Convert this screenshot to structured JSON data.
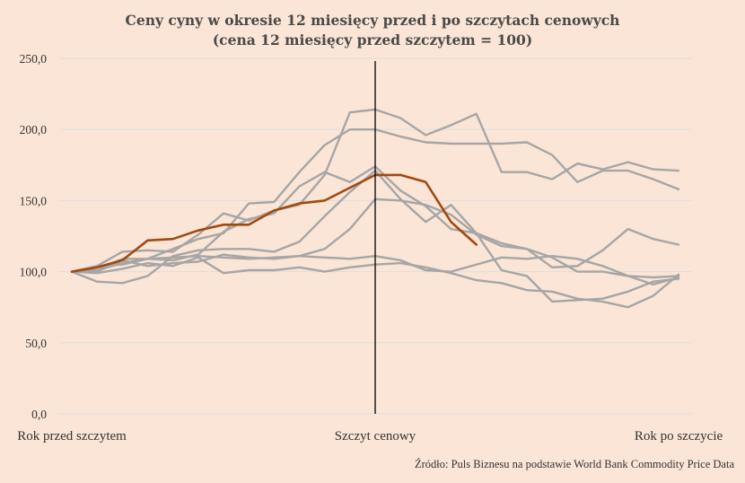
{
  "chart_data": {
    "type": "line",
    "title": "Ceny cyny w okresie 12 miesięcy przed i po szczytach cenowych",
    "subtitle": "(cena 12 miesięcy przed szczytem = 100)",
    "x_labels": [
      "Rok przed szczytem",
      "Szczyt cenowy",
      "Rok po szczycie"
    ],
    "x_range": [
      -12,
      12
    ],
    "peak_x": 0,
    "ylim": [
      0,
      250
    ],
    "y_ticks": [
      "0,0",
      "50,0",
      "100,0",
      "150,0",
      "200,0",
      "250,0"
    ],
    "grid": true,
    "source": "Źródło: Puls Biznesu na podstawie World Bank Commodity Price Data",
    "colors": {
      "history": "#a6a6a6",
      "current": "#a04a12",
      "background": "#fbe5d6",
      "grid": "#dedede",
      "peak_line": "#000000"
    },
    "series": [
      {
        "role": "history",
        "x": [
          -12,
          -11,
          -10,
          -9,
          -8,
          -7,
          -6,
          -5,
          -4,
          -3,
          -2,
          -1,
          0,
          1,
          2,
          3,
          4,
          5,
          6,
          7,
          8,
          9,
          10,
          11,
          12
        ],
        "values": [
          100,
          104,
          114,
          115,
          114,
          126,
          141,
          136,
          143,
          147,
          168,
          212,
          214,
          208,
          196,
          203,
          211,
          170,
          170,
          165,
          176,
          172,
          177,
          172,
          171
        ]
      },
      {
        "role": "history",
        "x": [
          -12,
          -11,
          -10,
          -9,
          -8,
          -7,
          -6,
          -5,
          -4,
          -3,
          -2,
          -1,
          0,
          1,
          2,
          3,
          4,
          5,
          6,
          7,
          8,
          9,
          10,
          11,
          12
        ],
        "values": [
          100,
          104,
          105,
          109,
          116,
          123,
          127,
          148,
          149,
          170,
          189,
          200,
          200,
          195,
          191,
          190,
          190,
          190,
          191,
          182,
          163,
          171,
          171,
          165,
          158
        ]
      },
      {
        "role": "history",
        "x": [
          -12,
          -11,
          -10,
          -9,
          -8,
          -7,
          -6,
          -5,
          -4,
          -3,
          -2,
          -1,
          0,
          1,
          2,
          3,
          4,
          5,
          6,
          7,
          8,
          9,
          10,
          11,
          12
        ],
        "values": [
          100,
          101,
          109,
          109,
          108,
          112,
          128,
          137,
          141,
          160,
          170,
          163,
          174,
          157,
          146,
          130,
          127,
          120,
          116,
          103,
          104,
          115,
          130,
          123,
          119
        ]
      },
      {
        "role": "history",
        "x": [
          -12,
          -11,
          -10,
          -9,
          -8,
          -7,
          -6,
          -5,
          -4,
          -3,
          -2,
          -1,
          0,
          1,
          2,
          3,
          4,
          5,
          6,
          7,
          8,
          9,
          10,
          11,
          12
        ],
        "values": [
          100,
          93,
          92,
          97,
          111,
          115,
          116,
          116,
          114,
          121,
          139,
          156,
          171,
          151,
          135,
          147,
          127,
          101,
          97,
          79,
          80,
          81,
          86,
          93,
          95
        ]
      },
      {
        "role": "history",
        "x": [
          -12,
          -11,
          -10,
          -9,
          -8,
          -7,
          -6,
          -5,
          -4,
          -3,
          -2,
          -1,
          0,
          1,
          2,
          3,
          4,
          5,
          6,
          7,
          8,
          9,
          10,
          11,
          12
        ],
        "values": [
          100,
          100,
          108,
          104,
          106,
          107,
          112,
          110,
          109,
          111,
          116,
          130,
          151,
          150,
          147,
          140,
          126,
          118,
          116,
          110,
          100,
          100,
          97,
          96,
          97
        ]
      },
      {
        "role": "history",
        "x": [
          -12,
          -11,
          -10,
          -9,
          -8,
          -7,
          -6,
          -5,
          -4,
          -3,
          -2,
          -1,
          0,
          1,
          2,
          3,
          4,
          5,
          6,
          7,
          8,
          9,
          10,
          11,
          12
        ],
        "values": [
          100,
          99,
          102,
          106,
          104,
          110,
          99,
          101,
          101,
          103,
          100,
          103,
          105,
          106,
          103,
          99,
          94,
          92,
          87,
          86,
          81,
          79,
          75,
          83,
          98
        ]
      },
      {
        "role": "history",
        "x": [
          -12,
          -11,
          -10,
          -9,
          -8,
          -7,
          -6,
          -5,
          -4,
          -3,
          -2,
          -1,
          0,
          1,
          2,
          3,
          4,
          5,
          6,
          7,
          8,
          9,
          10,
          11,
          12
        ],
        "values": [
          100,
          101,
          106,
          109,
          110,
          111,
          110,
          109,
          110,
          111,
          110,
          109,
          111,
          108,
          101,
          100,
          105,
          110,
          109,
          111,
          109,
          104,
          97,
          91,
          96
        ]
      },
      {
        "role": "current",
        "x": [
          -12,
          -11,
          -10,
          -9,
          -8,
          -7,
          -6,
          -5,
          -4,
          -3,
          -2,
          -1,
          0,
          1,
          2,
          3,
          4
        ],
        "values": [
          100,
          103,
          108,
          122,
          123,
          129,
          133,
          133,
          143,
          148,
          150,
          159,
          168,
          168,
          163,
          135,
          119
        ]
      }
    ]
  }
}
